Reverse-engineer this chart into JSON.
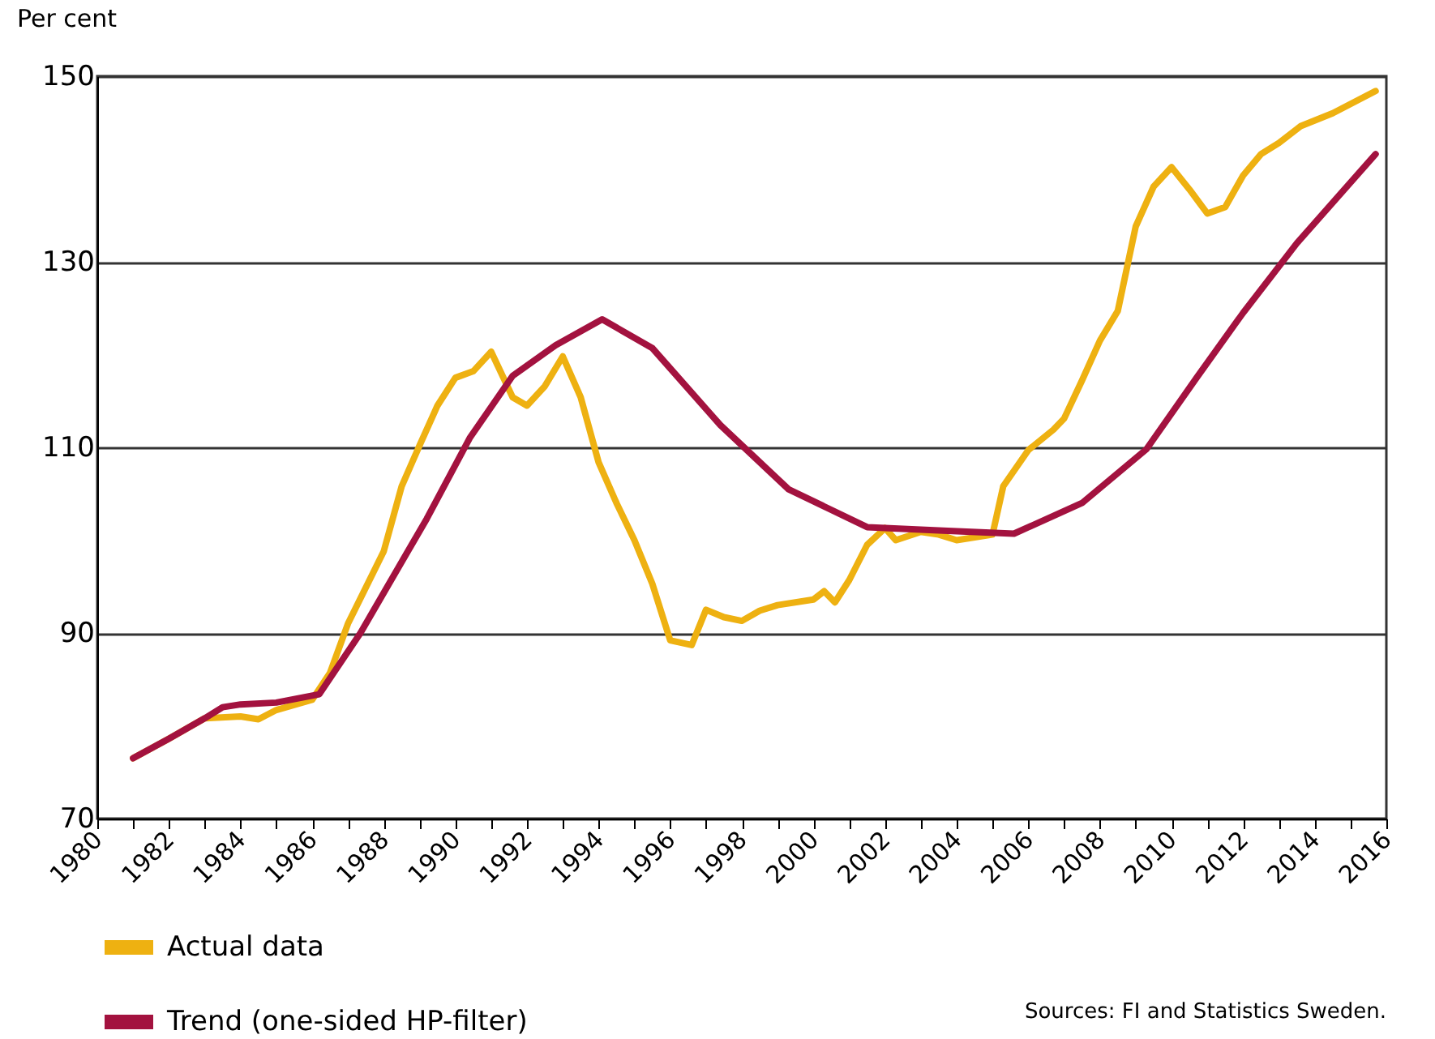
{
  "chart_data": {
    "type": "line",
    "ylabel": "Per cent",
    "xlim": [
      1980,
      2016
    ],
    "xticks": [
      1980,
      {
        "value": 1981,
        "label": null
      },
      1982,
      {
        "value": 1983,
        "label": null
      },
      1984,
      {
        "value": 1985,
        "label": null
      },
      1986,
      {
        "value": 1987,
        "label": null
      },
      1988,
      {
        "value": 1989,
        "label": null
      },
      1990,
      {
        "value": 1991,
        "label": null
      },
      1992,
      {
        "value": 1993,
        "label": null
      },
      1994,
      {
        "value": 1995,
        "label": null
      },
      1996,
      {
        "value": 1997,
        "label": null
      },
      1998,
      {
        "value": 1999,
        "label": null
      },
      2000,
      {
        "value": 2001,
        "label": null
      },
      2002,
      {
        "value": 2003,
        "label": null
      },
      2004,
      {
        "value": 2005,
        "label": null
      },
      2006,
      {
        "value": 2007,
        "label": null
      },
      2008,
      {
        "value": 2009,
        "label": null
      },
      2010,
      {
        "value": 2011,
        "label": null
      },
      2012,
      {
        "value": 2013,
        "label": null
      },
      2014,
      {
        "value": 2015,
        "label": null
      },
      2016
    ],
    "ylim": [
      70,
      150
    ],
    "yticks": [
      70,
      90,
      110,
      130,
      150
    ],
    "grid": "y",
    "legend": "bottom left",
    "line_style": "solid",
    "marker": "none",
    "series": [
      {
        "name": "Actual data",
        "color": "#eeb111",
        "x": [
          1981,
          1982,
          1983,
          1984,
          1984.5,
          1985,
          1986,
          1986.5,
          1987,
          1988,
          1988.5,
          1989,
          1989.5,
          1990,
          1990.5,
          1991,
          1991.6,
          1992,
          1992.5,
          1993,
          1993.5,
          1994,
          1994.5,
          1995,
          1995.5,
          1996,
          1996.6,
          1997,
          1997.5,
          1998,
          1998.5,
          1999,
          2000,
          2000.3,
          2000.6,
          2001,
          2001.5,
          2002,
          2002.3,
          2003,
          2003.5,
          2004,
          2005,
          2005.3,
          2006,
          2006.7,
          2007,
          2007.5,
          2008,
          2008.5,
          2009,
          2009.5,
          2010,
          2010.5,
          2011,
          2011.5,
          2012,
          2012.5,
          2013,
          2013.6,
          2014.5,
          2015.7
        ],
        "values": [
          76.5,
          78.6,
          80.8,
          81,
          80.7,
          81.7,
          82.8,
          85.7,
          91,
          98.8,
          105.8,
          110.2,
          114.5,
          117.5,
          118.2,
          120.3,
          115.4,
          114.5,
          116.6,
          119.8,
          115.4,
          108.4,
          104,
          100,
          95.3,
          89.2,
          88.7,
          92.5,
          91.7,
          91.3,
          92.4,
          93,
          93.6,
          94.5,
          93.3,
          95.7,
          99.5,
          101.3,
          100,
          100.9,
          100.6,
          100,
          100.6,
          105.8,
          109.7,
          111.9,
          113.1,
          117.2,
          121.5,
          124.7,
          133.8,
          138.1,
          140.2,
          137.8,
          135.2,
          135.9,
          139.3,
          141.6,
          142.8,
          144.6,
          146,
          148.4
        ]
      },
      {
        "name": "Trend (one-sided HP-filter)",
        "color": "#a3123f",
        "x": [
          1981,
          1982,
          1983,
          1983.5,
          1984,
          1985,
          1986.2,
          1987.35,
          1989.2,
          1990.4,
          1991.6,
          1992.8,
          1994.1,
          1995.5,
          1997.4,
          1999.3,
          2001.5,
          2003.75,
          2005.6,
          2007.5,
          2009.3,
          2010.7,
          2012,
          2013.5,
          2015.7
        ],
        "values": [
          76.5,
          78.6,
          80.8,
          82,
          82.3,
          82.5,
          83.4,
          90,
          102.3,
          111,
          117.7,
          121,
          123.8,
          120.7,
          112.4,
          105.5,
          101.4,
          101,
          100.7,
          104,
          109.8,
          117.5,
          124.5,
          132,
          141.6
        ]
      }
    ],
    "annotations": [
      "Sources: FI and Statistics Sweden."
    ]
  }
}
